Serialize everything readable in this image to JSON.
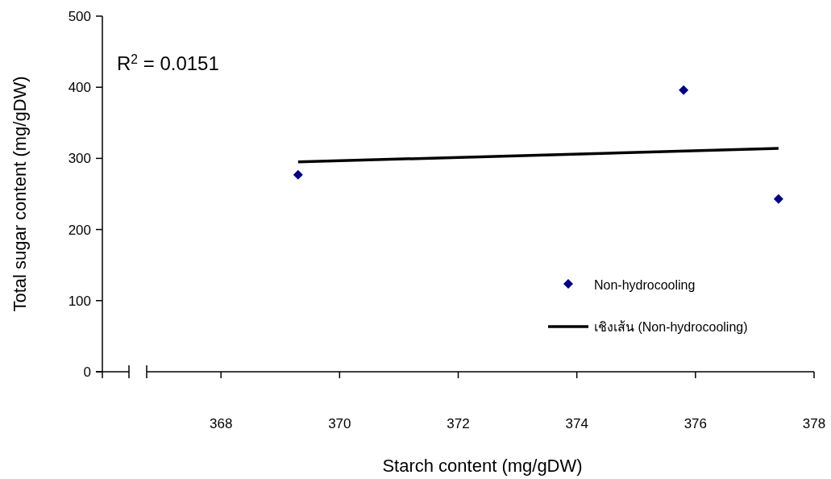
{
  "chart_data": {
    "type": "scatter",
    "xlabel": "Starch content (mg/gDW)",
    "ylabel": "Total sugar content (mg/gDW)",
    "annotations": [
      "R$^{2}$ = 0.0151"
    ],
    "xlim": [
      366,
      378
    ],
    "xticks": [
      368,
      370,
      372,
      374,
      376,
      378
    ],
    "ylim": [
      0,
      500
    ],
    "yticks": [
      0,
      100,
      200,
      300,
      400,
      500
    ],
    "legend": "bottom right",
    "marker": "diamond",
    "series": [
      {
        "name": "Non-hydrocooling",
        "color": "#000080",
        "x": [
          369.3,
          375.8,
          377.4
        ],
        "values": [
          277,
          396,
          243
        ]
      },
      {
        "name": "เชิงเส้น (Non-hydrocooling)",
        "type": "line",
        "marker": "none",
        "color": "#000000",
        "x": [
          369.3,
          377.4
        ],
        "values": [
          295,
          314
        ]
      }
    ]
  }
}
